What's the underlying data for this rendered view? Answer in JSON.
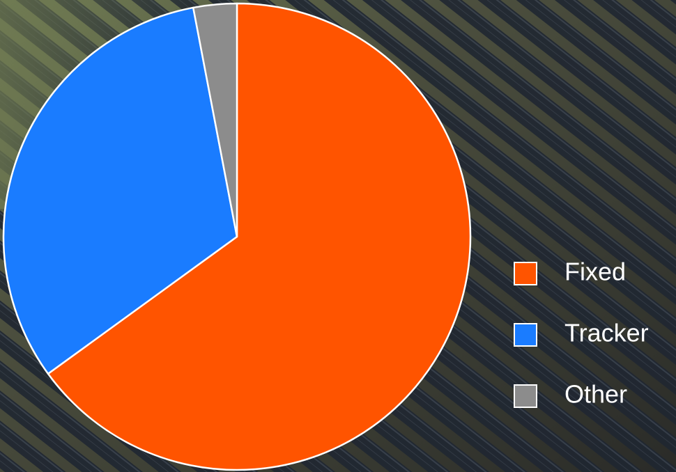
{
  "chart_data": {
    "type": "pie",
    "categories": [
      "Fixed",
      "Tracker",
      "Other"
    ],
    "values": [
      65,
      32,
      3
    ],
    "colors": [
      "#ff5400",
      "#1a7cff",
      "#8c8c8c"
    ],
    "start_angle": 0,
    "direction": "clockwise",
    "legend": "right"
  }
}
